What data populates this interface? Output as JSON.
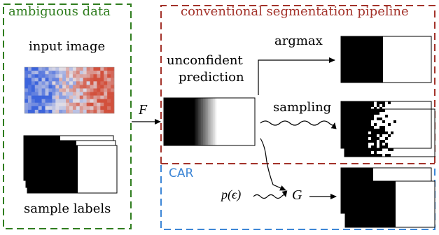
{
  "panels": {
    "data": {
      "title": "ambiguous data",
      "input_label": "input image",
      "labels_label": "sample labels",
      "color": "#2f7d1e"
    },
    "conventional": {
      "title": "conventional segmentation pipeline",
      "color": "#a3322a"
    },
    "car": {
      "title": "CAR",
      "color": "#3d86d6"
    }
  },
  "prediction": {
    "line1": "unconfident",
    "line2": "prediction"
  },
  "branches": {
    "argmax": "argmax",
    "sampling": "sampling"
  },
  "math": {
    "F": "F",
    "G": "G",
    "noise": "p(ϵ)"
  }
}
